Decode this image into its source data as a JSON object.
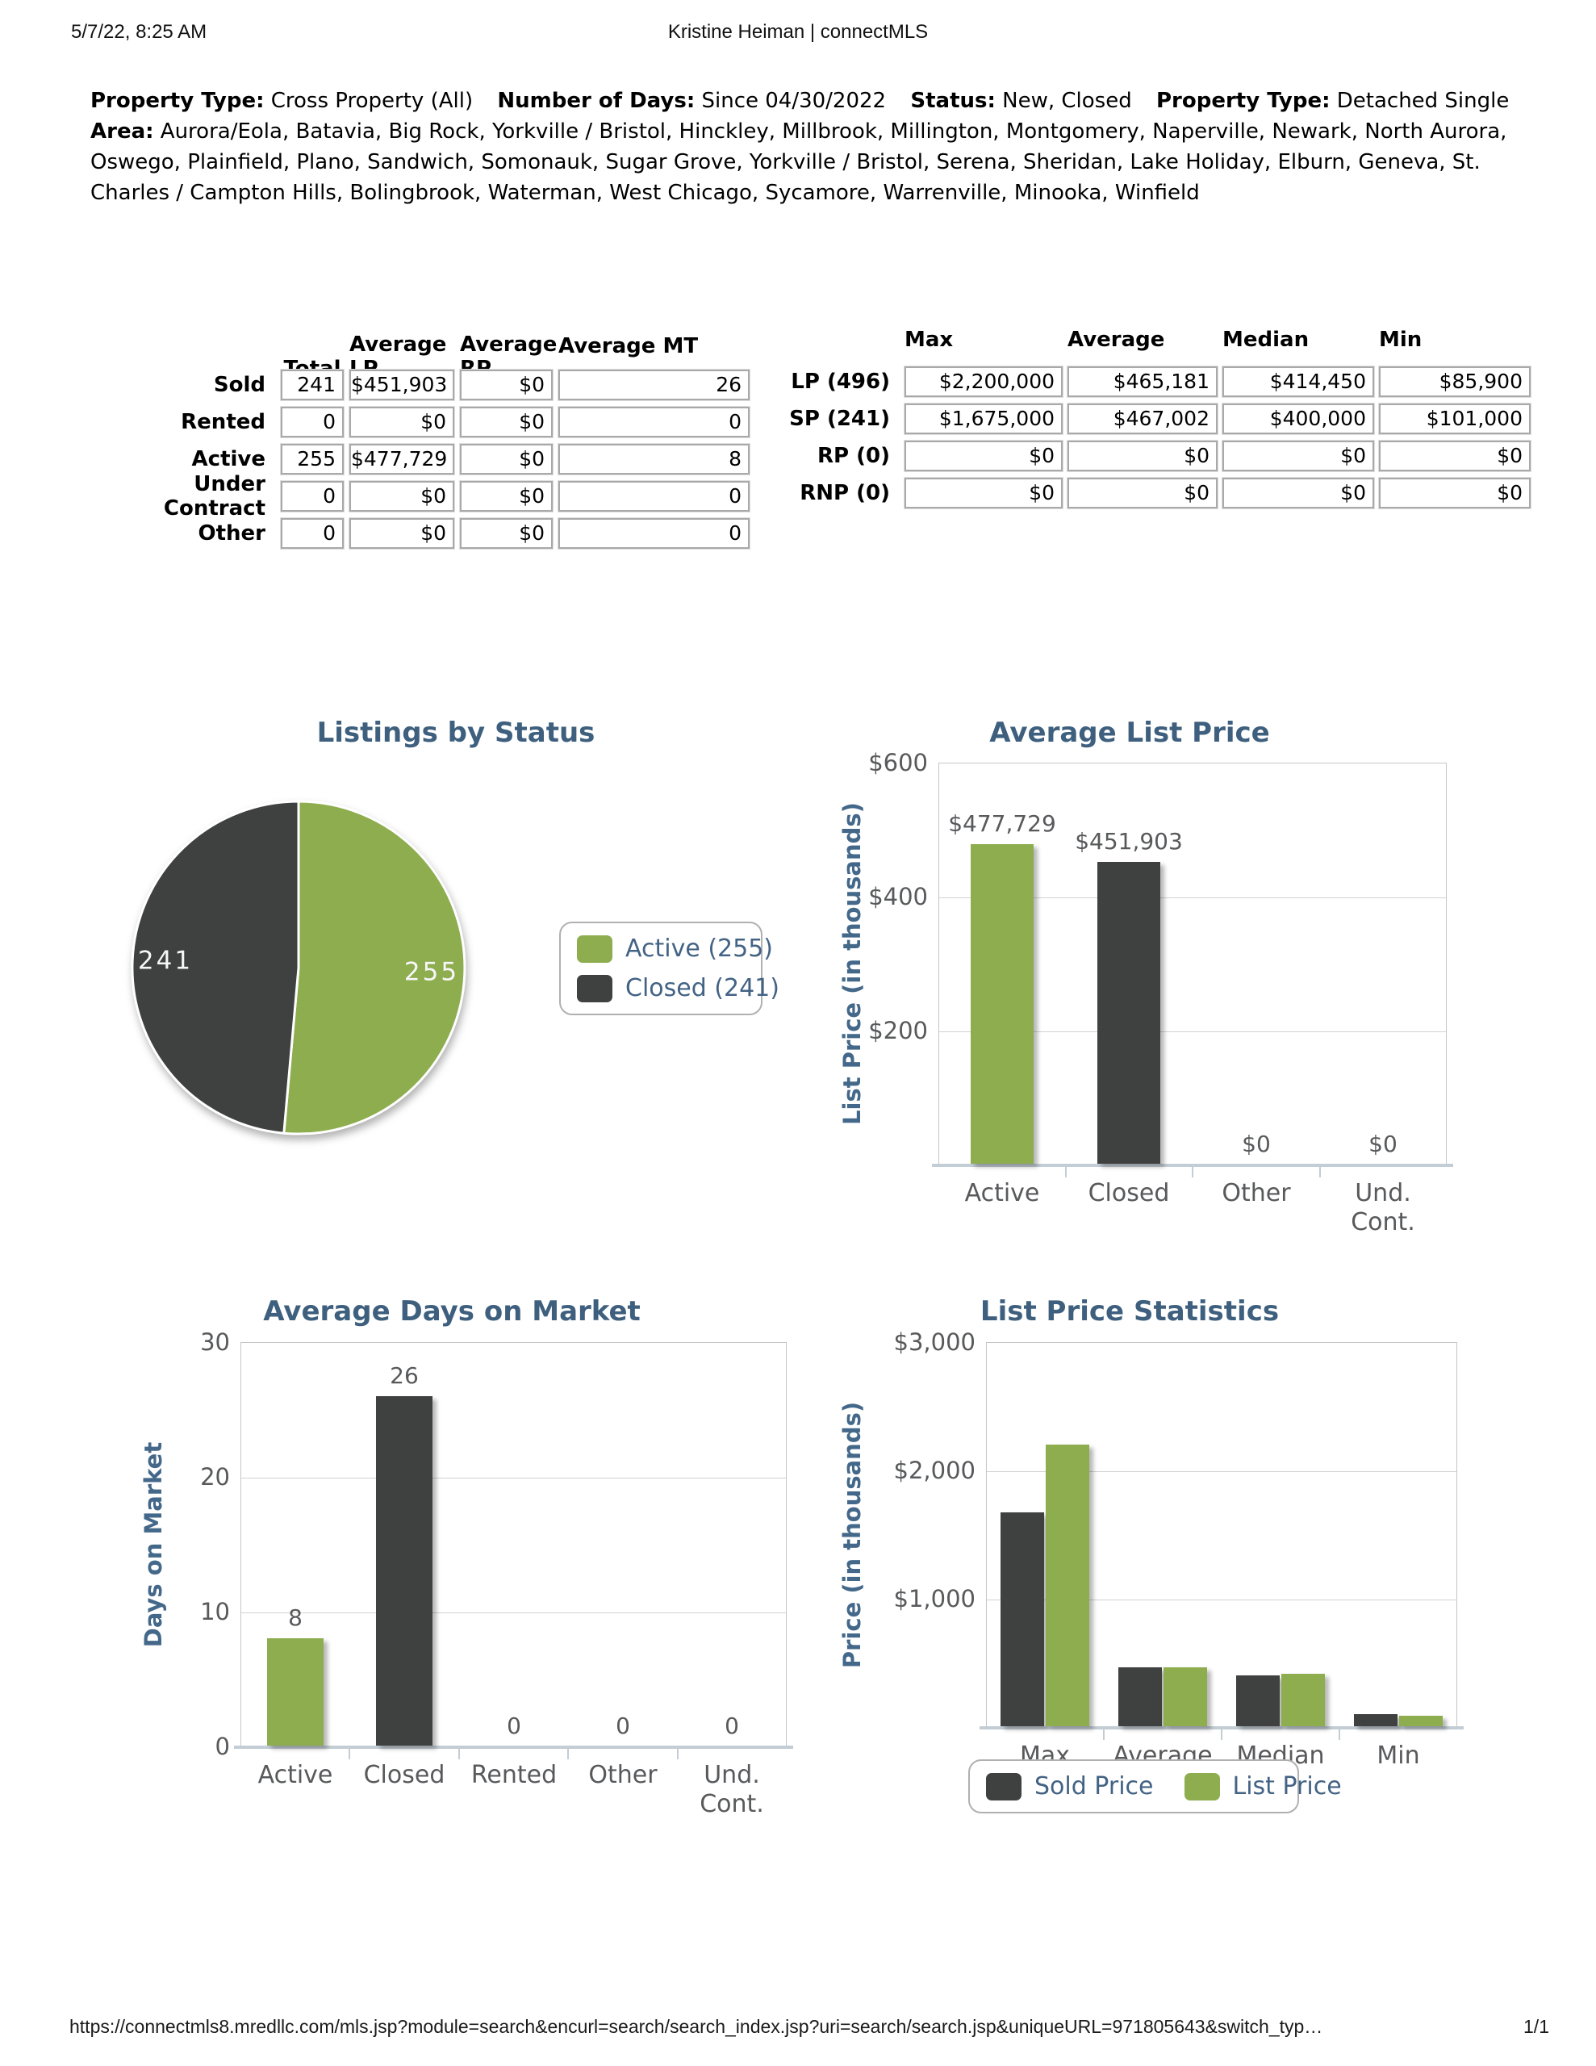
{
  "header": {
    "printed_at": "5/7/22, 8:25 AM",
    "title": "Kristine Heiman | connectMLS"
  },
  "criteria": [
    {
      "label": "Property Type:",
      "value": "Cross Property (All)"
    },
    {
      "label": "Number of Days:",
      "value": "Since 04/30/2022"
    },
    {
      "label": "Status:",
      "value": "New, Closed"
    },
    {
      "label": "Property Type:",
      "value": "Detached Single"
    },
    {
      "label": "Area:",
      "value": "Aurora/Eola, Batavia, Big Rock, Yorkville / Bristol, Hinckley, Millbrook, Millington, Montgomery, Naperville, Newark, North Aurora, Oswego, Plainfield, Plano, Sandwich, Somonauk, Sugar Grove, Yorkville / Bristol, Serena, Sheridan, Lake Holiday, Elburn, Geneva, St. Charles / Campton Hills, Bolingbrook, Waterman, West Chicago, Sycamore, Warrenville, Minooka, Winfield"
    }
  ],
  "summary_table": {
    "columns": [
      "Total",
      "Average LP",
      "Average RP",
      "Average MT"
    ],
    "rows": [
      {
        "label": "Sold",
        "values": [
          "241",
          "$451,903",
          "$0",
          "26"
        ]
      },
      {
        "label": "Rented",
        "values": [
          "0",
          "$0",
          "$0",
          "0"
        ]
      },
      {
        "label": "Active",
        "values": [
          "255",
          "$477,729",
          "$0",
          "8"
        ]
      },
      {
        "label": "Under Contract",
        "values": [
          "0",
          "$0",
          "$0",
          "0"
        ]
      },
      {
        "label": "Other",
        "values": [
          "0",
          "$0",
          "$0",
          "0"
        ]
      }
    ]
  },
  "stats_table": {
    "columns": [
      "Max",
      "Average",
      "Median",
      "Min"
    ],
    "rows": [
      {
        "label": "LP (496)",
        "values": [
          "$2,200,000",
          "$465,181",
          "$414,450",
          "$85,900"
        ]
      },
      {
        "label": "SP (241)",
        "values": [
          "$1,675,000",
          "$467,002",
          "$400,000",
          "$101,000"
        ]
      },
      {
        "label": "RP (0)",
        "values": [
          "$0",
          "$0",
          "$0",
          "$0"
        ]
      },
      {
        "label": "RNP (0)",
        "values": [
          "$0",
          "$0",
          "$0",
          "$0"
        ]
      }
    ]
  },
  "colors": {
    "green": "#8dad4f",
    "dark": "#3f4040",
    "title_blue": "#3e607e",
    "axis_title_blue": "#44688a",
    "tick_gray": "#58595b"
  },
  "chart_data": [
    {
      "id": "listings_by_status",
      "type": "pie",
      "title": "Listings by Status",
      "slices": [
        {
          "label": "Active",
          "value": 255,
          "color_key": "green",
          "data_label": "255"
        },
        {
          "label": "Closed",
          "value": 241,
          "color_key": "dark",
          "data_label": "241"
        }
      ],
      "legend": [
        {
          "label": "Active (255)",
          "color_key": "green"
        },
        {
          "label": "Closed (241)",
          "color_key": "dark"
        }
      ],
      "legend_position": "right"
    },
    {
      "id": "average_list_price",
      "type": "bar",
      "title": "Average List Price",
      "ylabel": "List Price (in thousands)",
      "ylim": [
        0,
        600
      ],
      "grid": true,
      "categories": [
        "Active",
        "Closed",
        "Other",
        "Und.\nCont."
      ],
      "values": [
        477.729,
        451.903,
        0,
        0
      ],
      "bar_color_keys": [
        "green",
        "dark",
        "green",
        "dark"
      ],
      "data_labels": [
        "$477,729",
        "$451,903",
        "$0",
        "$0"
      ],
      "yticks": [
        {
          "value": 600,
          "label": "$600"
        },
        {
          "value": 400,
          "label": "$400"
        },
        {
          "value": 200,
          "label": "$200"
        }
      ]
    },
    {
      "id": "average_days_on_market",
      "type": "bar",
      "title": "Average Days on Market",
      "ylabel": "Days on Market",
      "ylim": [
        0,
        30
      ],
      "grid": true,
      "categories": [
        "Active",
        "Closed",
        "Rented",
        "Other",
        "Und.\nCont."
      ],
      "values": [
        8,
        26,
        0,
        0,
        0
      ],
      "bar_color_keys": [
        "green",
        "dark",
        "green",
        "dark",
        "green"
      ],
      "data_labels": [
        "8",
        "26",
        "0",
        "0",
        "0"
      ],
      "yticks": [
        {
          "value": 30,
          "label": "30"
        },
        {
          "value": 20,
          "label": "20"
        },
        {
          "value": 10,
          "label": "10"
        },
        {
          "value": 0,
          "label": "0"
        }
      ]
    },
    {
      "id": "list_price_statistics",
      "type": "bar",
      "title": "List Price Statistics",
      "ylabel": "Price (in thousands)",
      "ylim": [
        0,
        3000
      ],
      "grid": true,
      "categories": [
        "Max",
        "Average",
        "Median",
        "Min"
      ],
      "series": [
        {
          "name": "Sold Price",
          "color_key": "dark",
          "values": [
            1675,
            467.002,
            400,
            101
          ]
        },
        {
          "name": "List Price",
          "color_key": "green",
          "values": [
            2200,
            465.181,
            414.45,
            85.9
          ]
        }
      ],
      "yticks": [
        {
          "value": 3000,
          "label": "$3,000"
        },
        {
          "value": 2000,
          "label": "$2,000"
        },
        {
          "value": 1000,
          "label": "$1,000"
        }
      ],
      "legend": [
        {
          "label": "Sold Price",
          "color_key": "dark"
        },
        {
          "label": "List Price",
          "color_key": "green"
        }
      ],
      "legend_position": "bottom"
    }
  ],
  "footer": {
    "url": "https://connectmls8.mredllc.com/mls.jsp?module=search&encurl=search/search_index.jsp?uri=search/search.jsp&uniqueURL=971805643&switch_typ…",
    "page": "1/1"
  }
}
